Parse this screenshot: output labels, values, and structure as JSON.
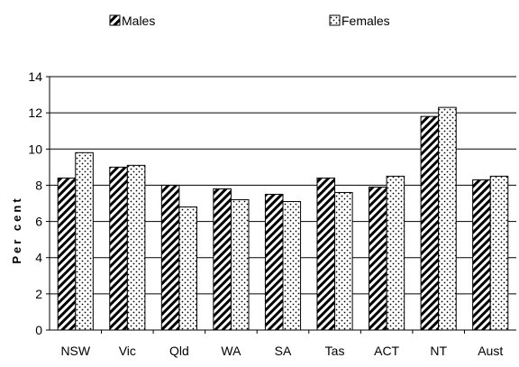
{
  "chart_data": {
    "type": "bar",
    "title": "",
    "xlabel": "",
    "ylabel": "Per cent",
    "ylim": [
      0,
      14
    ],
    "yticks": [
      "0",
      "2",
      "4",
      "6",
      "8",
      "10",
      "12",
      "14"
    ],
    "grid": true,
    "legend_position": "top",
    "categories": [
      "NSW",
      "Vic",
      "Qld",
      "WA",
      "SA",
      "Tas",
      "ACT",
      "NT",
      "Aust"
    ],
    "series": [
      {
        "name": "Males",
        "pattern": "diagonal-hatch",
        "color": "#000000",
        "values": [
          8.4,
          9.0,
          8.0,
          7.8,
          7.5,
          8.4,
          7.9,
          11.8,
          8.3
        ]
      },
      {
        "name": "Females",
        "pattern": "dotted",
        "color": "#000000",
        "values": [
          9.8,
          9.1,
          6.8,
          7.2,
          7.1,
          7.6,
          8.5,
          12.3,
          8.5
        ]
      }
    ]
  }
}
